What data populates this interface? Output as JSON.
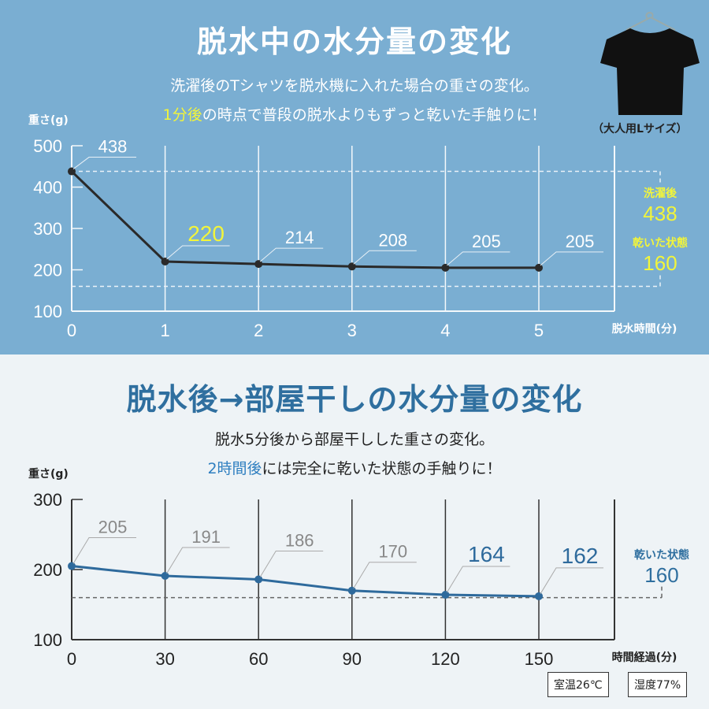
{
  "top": {
    "title": "脱水中の水分量の変化",
    "line1": "洗濯後のTシャツを脱水機に入れた場合の重さの変化。",
    "line2_highlight": "1分後",
    "line2_rest": "の時点で普段の脱水よりもずっと乾いた手触りに！",
    "size_label": "（大人用Lサイズ）",
    "icon": "t-shirt-on-hanger"
  },
  "bottom": {
    "title": "脱水後→部屋干しの水分量の変化",
    "line1": "脱水5分後から部屋干しした重さの変化。",
    "line2_highlight": "2時間後",
    "line2_rest": "には完全に乾いた状態の手触りに！",
    "room_temp": "室温26℃",
    "humidity": "湿度77%"
  },
  "colors": {
    "top_bg": "#7aaed2",
    "bottom_bg": "#eef3f6",
    "highlight_yellow": "#f2f53a",
    "accent_blue": "#2f6f9f",
    "line_dark": "#2a2a2a"
  },
  "chart_data": [
    {
      "type": "line",
      "ylabel": "重さ(g)",
      "xlabel": "脱水時間(分)",
      "x": [
        0,
        1,
        2,
        3,
        4,
        5
      ],
      "values": [
        438,
        220,
        214,
        208,
        205,
        205
      ],
      "data_labels": [
        "438",
        "220",
        "214",
        "208",
        "205",
        "205"
      ],
      "yticks": [
        "500",
        "400",
        "300",
        "200",
        "100"
      ],
      "xticks": [
        "0",
        "1",
        "2",
        "3",
        "4",
        "5"
      ],
      "ylim": [
        100,
        500
      ],
      "grid": "vertical",
      "reference_lines": [
        {
          "label": "洗濯後",
          "value": 438,
          "value_label": "438"
        },
        {
          "label": "乾いた状態",
          "value": 160,
          "value_label": "160"
        }
      ]
    },
    {
      "type": "line",
      "ylabel": "重さ(g)",
      "xlabel": "時間経過(分)",
      "x": [
        0,
        30,
        60,
        90,
        120,
        150
      ],
      "values": [
        205,
        191,
        186,
        170,
        164,
        162
      ],
      "data_labels": [
        "205",
        "191",
        "186",
        "170",
        "164",
        "162"
      ],
      "yticks": [
        "300",
        "200",
        "100"
      ],
      "xticks": [
        "0",
        "30",
        "60",
        "90",
        "120",
        "150"
      ],
      "ylim": [
        100,
        300
      ],
      "grid": "vertical",
      "reference_lines": [
        {
          "label": "乾いた状態",
          "value": 160,
          "value_label": "160"
        }
      ]
    }
  ]
}
